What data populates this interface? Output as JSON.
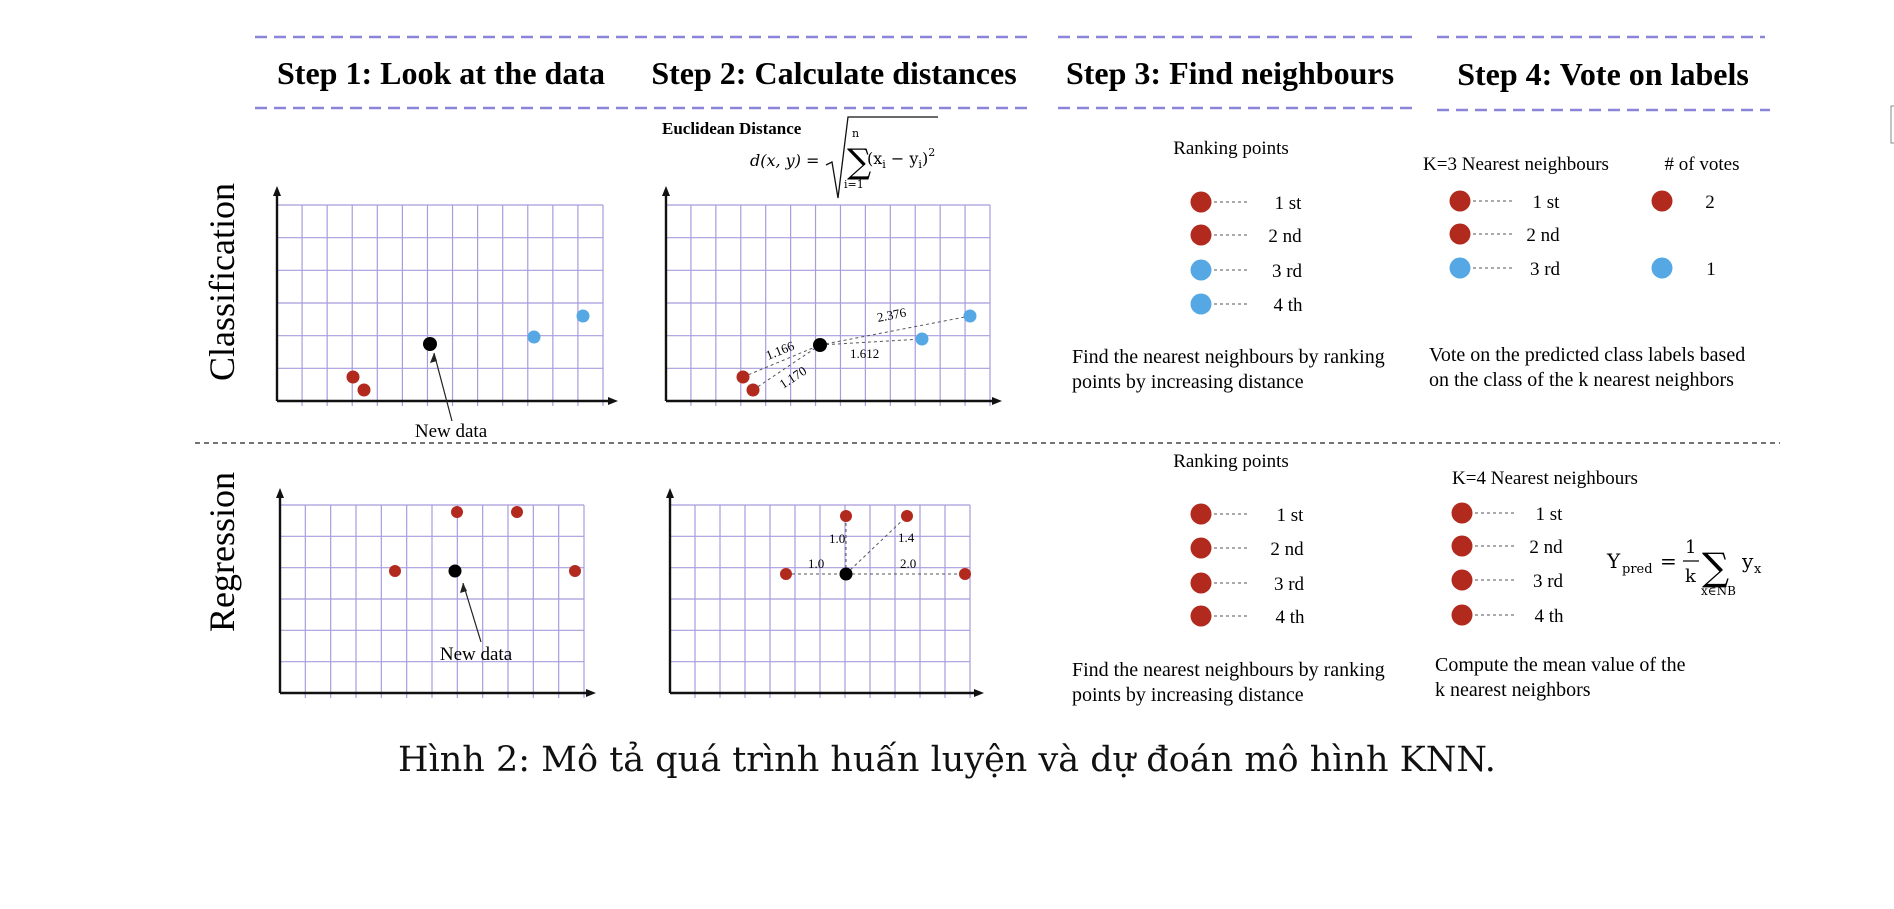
{
  "steps": [
    {
      "title": "Step 1: Look at the data"
    },
    {
      "title": "Step 2: Calculate distances"
    },
    {
      "title": "Step 3: Find neighbours"
    },
    {
      "title": "Step 4: Vote on labels"
    }
  ],
  "rows": {
    "classification": "Classification",
    "regression": "Regression"
  },
  "colors": {
    "red": "#b22a1e",
    "blue": "#55a8e3",
    "black": "#000000",
    "grid": "#a99bde",
    "header_dash": "#8a85d8"
  },
  "new_data_label": "New data",
  "euclidean": {
    "title": "Euclidean Distance",
    "lhs": "d(x, y) =",
    "sum_top": "n",
    "sum_bottom": "i=1",
    "term": "(x",
    "term_i": "i",
    "minus": " − y",
    "term_i2": "i",
    "close": ")",
    "power": "2"
  },
  "distances": {
    "classification": [
      "1.166",
      "1.170",
      "1.612",
      "2.376"
    ],
    "regression": [
      "1.0",
      "1.0",
      "1.4",
      "2.0"
    ]
  },
  "ranking_title": "Ranking points",
  "ranks": [
    "1 st",
    "2 nd",
    "3 rd",
    "4 th"
  ],
  "step3_desc": [
    "Find the nearest neighbours by ranking",
    "points by increasing distance"
  ],
  "classification_vote": {
    "k_label": "K=3 Nearest neighbours",
    "votes_label": "# of votes",
    "red_votes": "2",
    "blue_votes": "1",
    "desc": [
      "Vote on the predicted class labels based",
      "on the class of the k nearest neighbors"
    ]
  },
  "regression_vote": {
    "k_label": "K=4 Nearest neighbours",
    "formula_y": "Y",
    "formula_pred": "pred",
    "formula_eq": "=",
    "formula_num": "1",
    "formula_den": "k",
    "formula_sub": "x∈NB",
    "formula_yx": "y",
    "formula_x": "x",
    "desc": [
      "Compute the mean value of the",
      "k nearest neighbors"
    ]
  },
  "caption": "Hình 2: Mô tả quá trình huấn luyện và dự đoán mô hình KNN."
}
